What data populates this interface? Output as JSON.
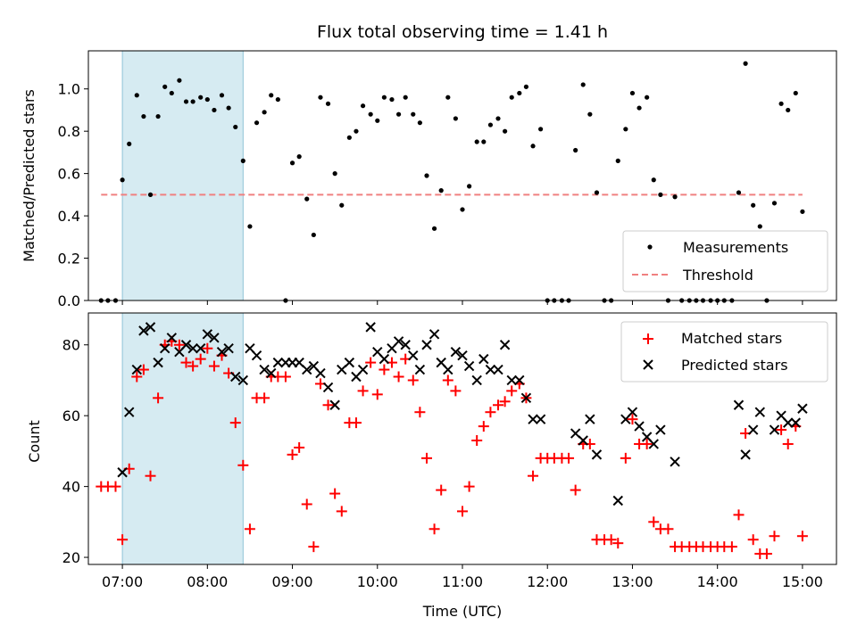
{
  "chart_data": [
    {
      "type": "scatter",
      "title": "Flux total observing time = 1.41 h",
      "ylabel": "Matched/Predicted stars",
      "xlabel": "",
      "xlim": [
        6.6,
        15.4
      ],
      "ylim": [
        0,
        1.18
      ],
      "yticks": [
        0.0,
        0.2,
        0.4,
        0.6,
        0.8,
        1.0
      ],
      "ytick_labels": [
        "0.0",
        "0.2",
        "0.4",
        "0.6",
        "0.8",
        "1.0"
      ],
      "xticks": [
        7,
        8,
        9,
        10,
        11,
        12,
        13,
        14,
        15
      ],
      "shaded_span": [
        7.0,
        8.42
      ],
      "threshold": {
        "value": 0.5,
        "x_range": [
          6.75,
          15.0
        ],
        "color": "#f08080"
      },
      "legend": {
        "placement": "lower-right",
        "entries": [
          "Measurements",
          "Threshold"
        ]
      },
      "series": [
        {
          "name": "Measurements",
          "color": "#000000",
          "x": [
            6.75,
            6.83,
            6.92,
            7.0,
            7.08,
            7.17,
            7.25,
            7.33,
            7.42,
            7.5,
            7.58,
            7.67,
            7.75,
            7.83,
            7.92,
            8.0,
            8.08,
            8.17,
            8.25,
            8.33,
            8.42,
            8.5,
            8.58,
            8.67,
            8.75,
            8.83,
            8.92,
            9.0,
            9.08,
            9.17,
            9.25,
            9.33,
            9.42,
            9.5,
            9.58,
            9.67,
            9.75,
            9.83,
            9.92,
            10.0,
            10.08,
            10.17,
            10.25,
            10.33,
            10.42,
            10.5,
            10.58,
            10.67,
            10.75,
            10.83,
            10.92,
            11.0,
            11.08,
            11.17,
            11.25,
            11.33,
            11.42,
            11.5,
            11.58,
            11.67,
            11.75,
            11.83,
            11.92,
            12.0,
            12.08,
            12.17,
            12.25,
            12.33,
            12.42,
            12.5,
            12.58,
            12.67,
            12.75,
            12.83,
            12.92,
            13.0,
            13.08,
            13.17,
            13.25,
            13.33,
            13.42,
            13.5,
            13.58,
            13.67,
            13.75,
            13.83,
            13.92,
            14.0,
            14.08,
            14.17,
            14.25,
            14.33,
            14.42,
            14.5,
            14.58,
            14.67,
            14.75,
            14.83,
            14.92,
            15.0
          ],
          "y": [
            0.0,
            0.0,
            0.0,
            0.57,
            0.74,
            0.97,
            0.87,
            0.5,
            0.87,
            1.01,
            0.98,
            1.04,
            0.94,
            0.94,
            0.96,
            0.95,
            0.9,
            0.97,
            0.91,
            0.82,
            0.66,
            0.35,
            0.84,
            0.89,
            0.97,
            0.95,
            0.0,
            0.65,
            0.68,
            0.48,
            0.31,
            0.96,
            0.93,
            0.6,
            0.45,
            0.77,
            0.8,
            0.92,
            0.88,
            0.85,
            0.96,
            0.95,
            0.88,
            0.96,
            0.88,
            0.84,
            0.59,
            0.34,
            0.52,
            0.96,
            0.86,
            0.43,
            0.54,
            0.75,
            0.75,
            0.83,
            0.86,
            0.8,
            0.96,
            0.98,
            1.01,
            0.73,
            0.81,
            0.0,
            0.0,
            0.0,
            0.0,
            0.71,
            1.02,
            0.88,
            0.51,
            0.0,
            0.0,
            0.66,
            0.81,
            0.98,
            0.91,
            0.96,
            0.57,
            0.5,
            0.0,
            0.49,
            0.0,
            0.0,
            0.0,
            0.0,
            0.0,
            0.0,
            0.0,
            0.0,
            0.51,
            1.12,
            0.45,
            0.35,
            0.0,
            0.46,
            0.93,
            0.9,
            0.98,
            0.42
          ]
        }
      ]
    },
    {
      "type": "scatter",
      "title": "",
      "ylabel": "Count",
      "xlabel": "Time (UTC)",
      "xlim": [
        6.6,
        15.4
      ],
      "ylim": [
        18,
        89
      ],
      "yticks": [
        20,
        40,
        60,
        80
      ],
      "ytick_labels": [
        "20",
        "40",
        "60",
        "80"
      ],
      "xticks": [
        7,
        8,
        9,
        10,
        11,
        12,
        13,
        14,
        15
      ],
      "xtick_labels": [
        "07:00",
        "08:00",
        "09:00",
        "10:00",
        "11:00",
        "12:00",
        "13:00",
        "14:00",
        "15:00"
      ],
      "shaded_span": [
        7.0,
        8.42
      ],
      "legend": {
        "placement": "upper-right",
        "entries": [
          "Matched stars",
          "Predicted stars"
        ]
      },
      "series": [
        {
          "name": "Matched stars",
          "marker": "plus",
          "color": "#ff0000",
          "x": [
            6.75,
            6.83,
            6.92,
            7.0,
            7.08,
            7.17,
            7.25,
            7.33,
            7.42,
            7.5,
            7.58,
            7.67,
            7.75,
            7.83,
            7.92,
            8.0,
            8.08,
            8.17,
            8.25,
            8.33,
            8.42,
            8.5,
            8.58,
            8.67,
            8.75,
            8.83,
            8.92,
            9.0,
            9.08,
            9.17,
            9.25,
            9.33,
            9.42,
            9.5,
            9.58,
            9.67,
            9.75,
            9.83,
            9.92,
            10.0,
            10.08,
            10.17,
            10.25,
            10.33,
            10.42,
            10.5,
            10.58,
            10.67,
            10.75,
            10.83,
            10.92,
            11.0,
            11.08,
            11.17,
            11.25,
            11.33,
            11.42,
            11.5,
            11.58,
            11.67,
            11.75,
            11.83,
            11.92,
            12.0,
            12.08,
            12.17,
            12.25,
            12.33,
            12.42,
            12.5,
            12.58,
            12.67,
            12.75,
            12.83,
            12.92,
            13.0,
            13.08,
            13.17,
            13.25,
            13.33,
            13.42,
            13.5,
            13.58,
            13.67,
            13.75,
            13.83,
            13.92,
            14.0,
            14.08,
            14.17,
            14.25,
            14.33,
            14.42,
            14.5,
            14.58,
            14.67,
            14.75,
            14.83,
            14.92,
            15.0
          ],
          "y": [
            40,
            40,
            40,
            25,
            45,
            71,
            73,
            43,
            65,
            80,
            81,
            80,
            75,
            74,
            76,
            79,
            74,
            77,
            72,
            58,
            46,
            28,
            65,
            65,
            71,
            71,
            71,
            49,
            51,
            35,
            23,
            69,
            63,
            38,
            33,
            58,
            58,
            67,
            75,
            66,
            73,
            75,
            71,
            76,
            70,
            61,
            48,
            28,
            39,
            70,
            67,
            33,
            40,
            53,
            57,
            61,
            63,
            64,
            67,
            69,
            65,
            43,
            48,
            48,
            48,
            48,
            48,
            39,
            52,
            52,
            25,
            25,
            25,
            24,
            48,
            59,
            52,
            52,
            30,
            28,
            28,
            23,
            23,
            23,
            23,
            23,
            23,
            23,
            23,
            23,
            32,
            55,
            25,
            21,
            21,
            26,
            56,
            52,
            57,
            26
          ]
        },
        {
          "name": "Predicted stars",
          "marker": "x",
          "color": "#000000",
          "x": [
            7.0,
            7.08,
            7.17,
            7.25,
            7.33,
            7.42,
            7.5,
            7.58,
            7.67,
            7.75,
            7.83,
            7.92,
            8.0,
            8.08,
            8.17,
            8.25,
            8.33,
            8.42,
            8.5,
            8.58,
            8.67,
            8.75,
            8.83,
            8.92,
            9.0,
            9.08,
            9.17,
            9.25,
            9.33,
            9.42,
            9.5,
            9.58,
            9.67,
            9.75,
            9.83,
            9.92,
            10.0,
            10.08,
            10.17,
            10.25,
            10.33,
            10.42,
            10.5,
            10.58,
            10.67,
            10.75,
            10.83,
            10.92,
            11.0,
            11.08,
            11.17,
            11.25,
            11.33,
            11.42,
            11.5,
            11.58,
            11.67,
            11.75,
            11.83,
            11.92,
            12.33,
            12.42,
            12.5,
            12.58,
            12.83,
            12.92,
            13.0,
            13.08,
            13.17,
            13.25,
            13.33,
            13.5,
            14.25,
            14.33,
            14.42,
            14.5,
            14.67,
            14.75,
            14.83,
            14.92,
            15.0
          ],
          "y": [
            44,
            61,
            73,
            84,
            85,
            75,
            79,
            82,
            78,
            80,
            79,
            79,
            83,
            82,
            78,
            79,
            71,
            70,
            79,
            77,
            73,
            72,
            75,
            75,
            75,
            75,
            73,
            74,
            72,
            68,
            63,
            73,
            75,
            71,
            73,
            85,
            78,
            76,
            79,
            81,
            80,
            77,
            73,
            80,
            83,
            75,
            73,
            78,
            77,
            74,
            70,
            76,
            73,
            73,
            80,
            70,
            70,
            65,
            59,
            59,
            55,
            53,
            59,
            49,
            36,
            59,
            61,
            57,
            54,
            52,
            56,
            47,
            63,
            49,
            56,
            61,
            56,
            60,
            58,
            58,
            62
          ]
        }
      ]
    }
  ]
}
